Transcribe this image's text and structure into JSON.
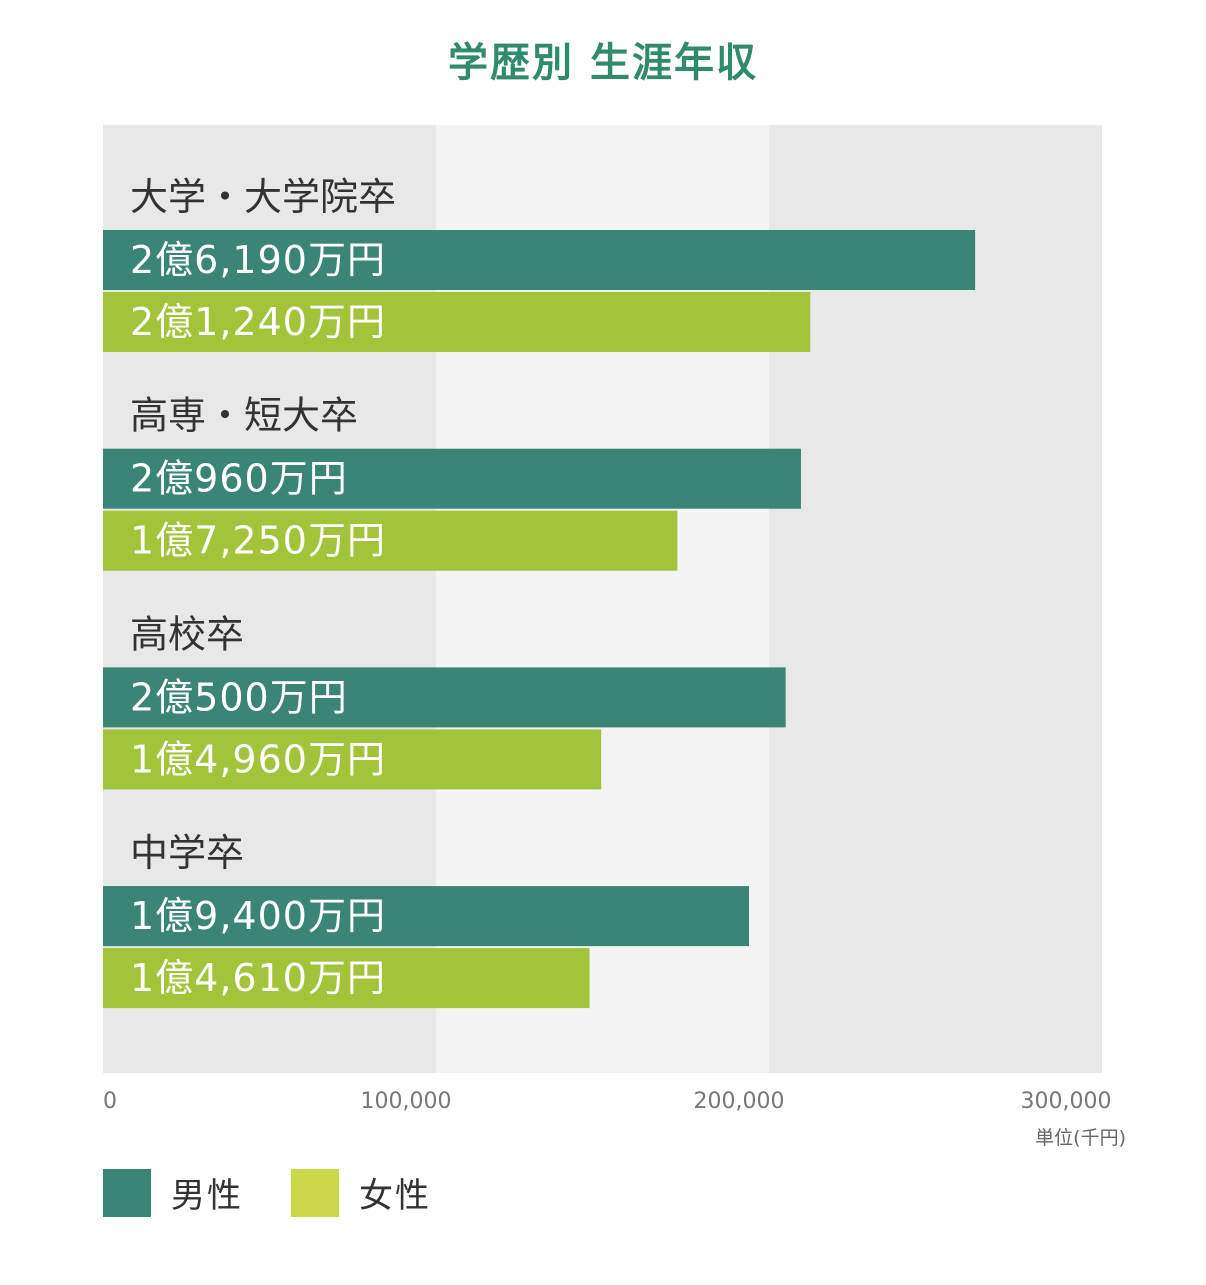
{
  "chart_data": {
    "type": "bar",
    "orientation": "horizontal",
    "title": "学歴別 生涯年収",
    "unit_label": "単位(千円)",
    "xlim": [
      0,
      300000
    ],
    "x_ticks": [
      0,
      100000,
      200000,
      300000
    ],
    "x_tick_labels": [
      "0",
      "100,000",
      "200,000",
      "300,000"
    ],
    "categories": [
      "大学・大学院卒",
      "高専・短大卒",
      "高校卒",
      "中学卒"
    ],
    "series": [
      {
        "name": "男性",
        "color": "#3b8577",
        "values": [
          261900,
          209600,
          205000,
          194000
        ],
        "labels": [
          "2億6,190万円",
          "2億960万円",
          "2億500万円",
          "1億9,400万円"
        ]
      },
      {
        "name": "女性",
        "color": "#a2c43a",
        "values": [
          212400,
          172500,
          149600,
          146100
        ],
        "labels": [
          "2億1,240万円",
          "1億7,250万円",
          "1億4,960万円",
          "1億4,610万円"
        ]
      }
    ],
    "legend": [
      {
        "label": "男性",
        "color": "#3b8577"
      },
      {
        "label": "女性",
        "color": "#cbd84a"
      }
    ],
    "legend_position": "bottom-left",
    "grid": "alternating-bands"
  }
}
